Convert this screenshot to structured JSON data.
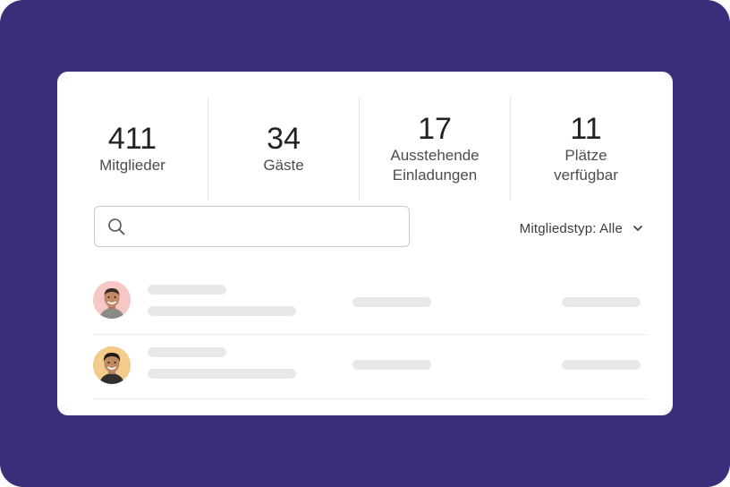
{
  "stats": [
    {
      "value": "411",
      "label": "Mitglieder"
    },
    {
      "value": "34",
      "label": "Gäste"
    },
    {
      "value": "17",
      "label": "Ausstehende\nEinladungen"
    },
    {
      "value": "11",
      "label": "Plätze\nverfügbar"
    }
  ],
  "search": {
    "placeholder": "",
    "value": ""
  },
  "filter": {
    "label": "Mitgliedstyp: Alle"
  },
  "members": [
    {
      "avatar_bg": "#f6c7c4"
    },
    {
      "avatar_bg": "#f3cb8a"
    }
  ],
  "colors": {
    "background": "#3a2e7b",
    "card": "#ffffff",
    "skeleton": "#e8e8e8"
  },
  "icons": {
    "search": "search-icon",
    "filter": "chevron-down-icon"
  }
}
